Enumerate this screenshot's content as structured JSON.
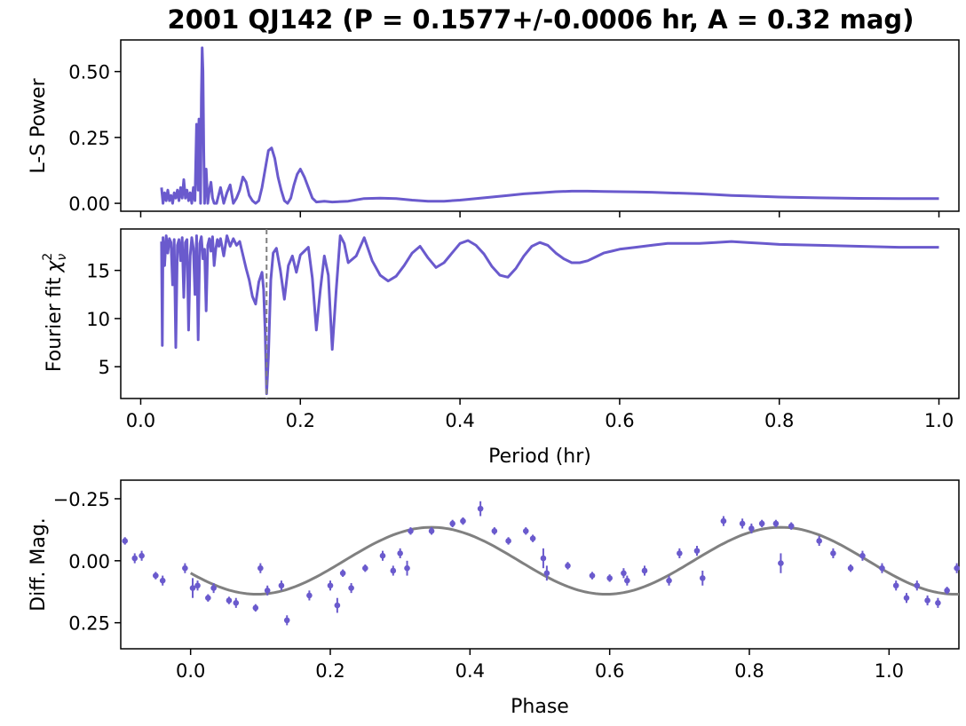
{
  "title": "2001 QJ142 (P = 0.1577+/-0.0006 hr, A = 0.32 mag)",
  "colors": {
    "series": "#6a5acd",
    "model": "#808080",
    "marker_line": "#808080",
    "axes": "#000000"
  },
  "chart_data": [
    {
      "id": "ls-power",
      "type": "line",
      "ylabel": "L-S Power",
      "xlim": [
        -0.025,
        1.025
      ],
      "ylim": [
        -0.03,
        0.62
      ],
      "yticks": [
        0.0,
        0.25,
        0.5
      ],
      "ytick_labels": [
        "0.00",
        "0.25",
        "0.50"
      ],
      "xticks": [
        0.0,
        0.2,
        0.4,
        0.6,
        0.8,
        1.0
      ],
      "series": [
        {
          "name": "L-S Power",
          "x": [
            0.026,
            0.028,
            0.03,
            0.032,
            0.034,
            0.036,
            0.038,
            0.04,
            0.042,
            0.044,
            0.046,
            0.048,
            0.05,
            0.052,
            0.054,
            0.056,
            0.058,
            0.06,
            0.062,
            0.064,
            0.066,
            0.068,
            0.07,
            0.071,
            0.072,
            0.073,
            0.074,
            0.075,
            0.076,
            0.077,
            0.078,
            0.079,
            0.08,
            0.081,
            0.082,
            0.084,
            0.086,
            0.088,
            0.09,
            0.092,
            0.095,
            0.1,
            0.104,
            0.108,
            0.112,
            0.116,
            0.12,
            0.124,
            0.128,
            0.132,
            0.136,
            0.14,
            0.144,
            0.148,
            0.152,
            0.156,
            0.16,
            0.164,
            0.168,
            0.172,
            0.176,
            0.18,
            0.184,
            0.188,
            0.192,
            0.196,
            0.2,
            0.205,
            0.21,
            0.215,
            0.22,
            0.23,
            0.24,
            0.26,
            0.28,
            0.3,
            0.32,
            0.34,
            0.36,
            0.38,
            0.4,
            0.42,
            0.44,
            0.46,
            0.48,
            0.5,
            0.52,
            0.54,
            0.56,
            0.58,
            0.6,
            0.62,
            0.64,
            0.66,
            0.68,
            0.7,
            0.72,
            0.74,
            0.76,
            0.78,
            0.8,
            0.85,
            0.9,
            0.95,
            1.0
          ],
          "y": [
            0.06,
            0.0,
            0.04,
            0.01,
            0.05,
            0.01,
            0.03,
            0.0,
            0.04,
            0.02,
            0.05,
            0.01,
            0.06,
            0.02,
            0.09,
            0.02,
            0.05,
            0.01,
            0.04,
            0.0,
            0.06,
            0.01,
            0.3,
            0.15,
            0.05,
            0.32,
            0.28,
            0.0,
            0.4,
            0.59,
            0.5,
            0.2,
            0.0,
            0.1,
            0.13,
            0.0,
            0.05,
            0.08,
            0.02,
            0.0,
            0.0,
            0.06,
            0.0,
            0.04,
            0.07,
            0.0,
            0.02,
            0.05,
            0.1,
            0.08,
            0.03,
            0.01,
            0.0,
            0.01,
            0.06,
            0.13,
            0.2,
            0.21,
            0.17,
            0.1,
            0.05,
            0.01,
            0.0,
            0.02,
            0.07,
            0.11,
            0.13,
            0.1,
            0.06,
            0.02,
            0.005,
            0.008,
            0.005,
            0.008,
            0.018,
            0.02,
            0.018,
            0.012,
            0.008,
            0.008,
            0.012,
            0.018,
            0.024,
            0.03,
            0.036,
            0.04,
            0.044,
            0.046,
            0.046,
            0.045,
            0.044,
            0.043,
            0.042,
            0.04,
            0.038,
            0.036,
            0.033,
            0.03,
            0.028,
            0.026,
            0.024,
            0.021,
            0.019,
            0.018,
            0.018
          ]
        }
      ]
    },
    {
      "id": "fourier-chi2",
      "type": "line",
      "ylabel": "Fourier fit",
      "ylabel_symbol": "χ",
      "ylabel_sub": "ν",
      "ylabel_sup": "2",
      "xlabel": "Period (hr)",
      "xlim": [
        -0.025,
        1.025
      ],
      "ylim": [
        1.7,
        19.3
      ],
      "yticks": [
        5,
        10,
        15
      ],
      "ytick_labels": [
        "5",
        "10",
        "15"
      ],
      "xticks": [
        0.0,
        0.2,
        0.4,
        0.6,
        0.8,
        1.0
      ],
      "xtick_labels": [
        "0.0",
        "0.2",
        "0.4",
        "0.6",
        "0.8",
        "1.0"
      ],
      "marker_period": 0.1577,
      "series": [
        {
          "name": "Fourier fit chi2",
          "x": [
            0.026,
            0.027,
            0.028,
            0.03,
            0.032,
            0.034,
            0.036,
            0.038,
            0.04,
            0.042,
            0.044,
            0.046,
            0.048,
            0.05,
            0.052,
            0.054,
            0.056,
            0.058,
            0.06,
            0.062,
            0.064,
            0.066,
            0.068,
            0.07,
            0.072,
            0.074,
            0.076,
            0.078,
            0.08,
            0.082,
            0.084,
            0.086,
            0.088,
            0.09,
            0.092,
            0.094,
            0.096,
            0.098,
            0.1,
            0.104,
            0.108,
            0.112,
            0.116,
            0.12,
            0.124,
            0.128,
            0.132,
            0.136,
            0.14,
            0.144,
            0.148,
            0.152,
            0.154,
            0.156,
            0.1577,
            0.16,
            0.163,
            0.166,
            0.17,
            0.175,
            0.18,
            0.185,
            0.19,
            0.195,
            0.2,
            0.205,
            0.21,
            0.215,
            0.22,
            0.225,
            0.23,
            0.235,
            0.24,
            0.245,
            0.25,
            0.255,
            0.26,
            0.27,
            0.28,
            0.29,
            0.3,
            0.31,
            0.32,
            0.33,
            0.34,
            0.35,
            0.36,
            0.37,
            0.38,
            0.39,
            0.4,
            0.41,
            0.42,
            0.43,
            0.44,
            0.45,
            0.46,
            0.47,
            0.48,
            0.49,
            0.5,
            0.51,
            0.52,
            0.53,
            0.54,
            0.55,
            0.56,
            0.57,
            0.58,
            0.59,
            0.6,
            0.62,
            0.64,
            0.66,
            0.68,
            0.7,
            0.72,
            0.74,
            0.76,
            0.78,
            0.8,
            0.85,
            0.9,
            0.95,
            1.0
          ],
          "y": [
            18.0,
            7.2,
            18.4,
            15.5,
            18.6,
            16.8,
            18.3,
            17.9,
            13.5,
            18.2,
            7.0,
            17.6,
            18.2,
            16.0,
            18.4,
            12.2,
            17.9,
            18.2,
            8.8,
            16.5,
            18.4,
            17.3,
            12.5,
            18.6,
            7.8,
            17.8,
            18.5,
            16.2,
            17.2,
            10.8,
            17.6,
            18.3,
            17.0,
            18.5,
            15.5,
            17.2,
            18.2,
            17.5,
            18.3,
            16.5,
            18.6,
            17.5,
            18.3,
            17.6,
            18.0,
            16.6,
            15.2,
            14.0,
            12.3,
            11.5,
            13.8,
            14.8,
            13.0,
            8.5,
            2.2,
            6.0,
            14.0,
            16.8,
            17.3,
            15.0,
            12.0,
            15.5,
            16.5,
            14.8,
            16.6,
            17.0,
            17.4,
            14.2,
            8.8,
            13.0,
            16.5,
            14.5,
            6.8,
            13.0,
            18.6,
            17.8,
            15.8,
            16.5,
            18.4,
            16.0,
            14.5,
            13.9,
            14.4,
            15.5,
            16.8,
            17.5,
            16.3,
            15.3,
            15.8,
            16.8,
            17.8,
            18.1,
            17.6,
            16.7,
            15.4,
            14.5,
            14.3,
            15.2,
            16.5,
            17.5,
            17.9,
            17.6,
            16.8,
            16.2,
            15.8,
            15.8,
            16.0,
            16.4,
            16.8,
            17.0,
            17.2,
            17.4,
            17.6,
            17.8,
            17.8,
            17.8,
            17.9,
            18.0,
            17.9,
            17.8,
            17.7,
            17.6,
            17.5,
            17.4,
            17.4
          ]
        }
      ]
    },
    {
      "id": "phased-lightcurve",
      "type": "scatter",
      "ylabel": "Diff. Mag.",
      "xlabel": "Phase",
      "xlim": [
        -0.1,
        1.1
      ],
      "ylim": [
        0.355,
        -0.325
      ],
      "yticks": [
        -0.25,
        0.0,
        0.25
      ],
      "ytick_labels": [
        "−0.25",
        "0.00",
        "0.25"
      ],
      "xticks": [
        0.0,
        0.2,
        0.4,
        0.6,
        0.8,
        1.0
      ],
      "xtick_labels": [
        "0.0",
        "0.2",
        "0.4",
        "0.6",
        "0.8",
        "1.0"
      ],
      "model": {
        "name": "Fourier model",
        "mean": 0.0,
        "amplitude": 0.135,
        "peaks_at": [
          0.41,
          0.82
        ],
        "troughs_at": [
          0.095,
          0.615,
          1.095
        ]
      },
      "series": [
        {
          "name": "observations",
          "points": [
            [
              -0.094,
              -0.08,
              0.015
            ],
            [
              -0.08,
              -0.01,
              0.02
            ],
            [
              -0.07,
              -0.02,
              0.02
            ],
            [
              -0.05,
              0.06,
              0.015
            ],
            [
              -0.04,
              0.08,
              0.02
            ],
            [
              -0.008,
              0.03,
              0.02
            ],
            [
              0.003,
              0.11,
              0.04
            ],
            [
              0.01,
              0.1,
              0.02
            ],
            [
              0.025,
              0.15,
              0.015
            ],
            [
              0.033,
              0.11,
              0.02
            ],
            [
              0.055,
              0.16,
              0.015
            ],
            [
              0.065,
              0.17,
              0.02
            ],
            [
              0.093,
              0.19,
              0.015
            ],
            [
              0.1,
              0.03,
              0.02
            ],
            [
              0.11,
              0.12,
              0.02
            ],
            [
              0.13,
              0.1,
              0.02
            ],
            [
              0.138,
              0.24,
              0.02
            ],
            [
              0.17,
              0.14,
              0.02
            ],
            [
              0.2,
              0.1,
              0.02
            ],
            [
              0.21,
              0.18,
              0.03
            ],
            [
              0.218,
              0.05,
              0.015
            ],
            [
              0.23,
              0.11,
              0.02
            ],
            [
              0.25,
              0.03,
              0.015
            ],
            [
              0.275,
              -0.02,
              0.02
            ],
            [
              0.29,
              0.04,
              0.02
            ],
            [
              0.3,
              -0.03,
              0.02
            ],
            [
              0.31,
              0.03,
              0.03
            ],
            [
              0.315,
              -0.12,
              0.015
            ],
            [
              0.345,
              -0.12,
              0.015
            ],
            [
              0.375,
              -0.15,
              0.015
            ],
            [
              0.39,
              -0.16,
              0.015
            ],
            [
              0.415,
              -0.21,
              0.03
            ],
            [
              0.435,
              -0.12,
              0.015
            ],
            [
              0.455,
              -0.08,
              0.015
            ],
            [
              0.48,
              -0.12,
              0.015
            ],
            [
              0.49,
              -0.09,
              0.015
            ],
            [
              0.505,
              -0.01,
              0.04
            ],
            [
              0.51,
              0.05,
              0.03
            ],
            [
              0.54,
              0.02,
              0.015
            ],
            [
              0.575,
              0.06,
              0.015
            ],
            [
              0.6,
              0.07,
              0.015
            ],
            [
              0.62,
              0.05,
              0.02
            ],
            [
              0.625,
              0.08,
              0.02
            ],
            [
              0.65,
              0.04,
              0.02
            ],
            [
              0.685,
              0.08,
              0.02
            ],
            [
              0.7,
              -0.03,
              0.02
            ],
            [
              0.725,
              -0.04,
              0.02
            ],
            [
              0.733,
              0.07,
              0.03
            ],
            [
              0.763,
              -0.16,
              0.02
            ],
            [
              0.79,
              -0.15,
              0.02
            ],
            [
              0.803,
              -0.13,
              0.02
            ],
            [
              0.818,
              -0.15,
              0.015
            ],
            [
              0.838,
              -0.15,
              0.015
            ],
            [
              0.845,
              0.01,
              0.04
            ],
            [
              0.86,
              -0.14,
              0.015
            ],
            [
              0.9,
              -0.08,
              0.02
            ],
            [
              0.92,
              -0.03,
              0.02
            ],
            [
              0.945,
              0.03,
              0.015
            ],
            [
              0.962,
              -0.02,
              0.02
            ],
            [
              0.99,
              0.03,
              0.02
            ],
            [
              1.01,
              0.1,
              0.02
            ],
            [
              1.025,
              0.15,
              0.02
            ],
            [
              1.04,
              0.1,
              0.02
            ],
            [
              1.055,
              0.16,
              0.02
            ],
            [
              1.07,
              0.17,
              0.02
            ],
            [
              1.083,
              0.12,
              0.015
            ],
            [
              1.097,
              0.03,
              0.02
            ]
          ]
        }
      ]
    }
  ]
}
